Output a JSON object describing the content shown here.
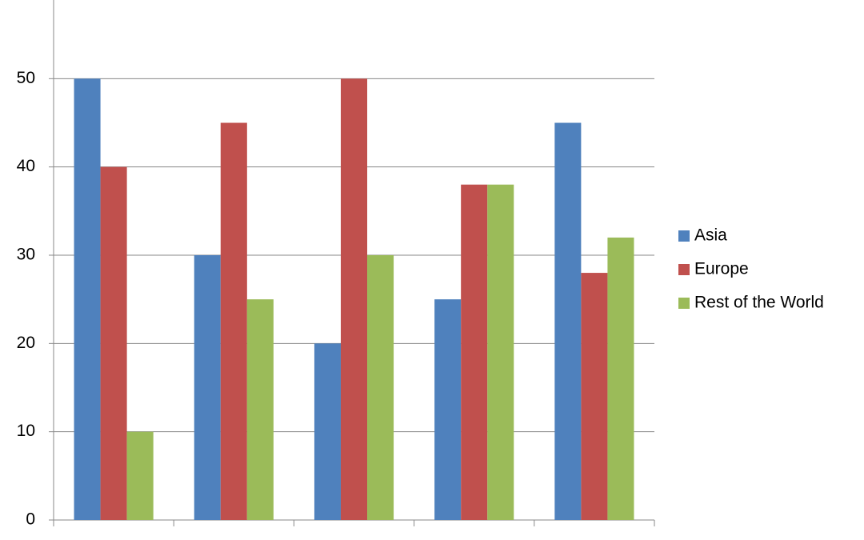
{
  "chart_data": {
    "type": "bar",
    "categories": [
      null,
      null,
      null,
      null,
      null
    ],
    "series": [
      {
        "name": "Asia",
        "color": "#4f81bd",
        "values": [
          50,
          30,
          20,
          25,
          45
        ]
      },
      {
        "name": "Europe",
        "color": "#c0504d",
        "values": [
          40,
          45,
          50,
          38,
          28
        ]
      },
      {
        "name": "Rest of the World",
        "color": "#9bbb59",
        "values": [
          10,
          25,
          30,
          38,
          32
        ]
      }
    ],
    "ylim": [
      0,
      60
    ],
    "yticks": [
      0,
      10,
      20,
      30,
      40,
      50
    ],
    "grid": true,
    "legend": "right"
  }
}
